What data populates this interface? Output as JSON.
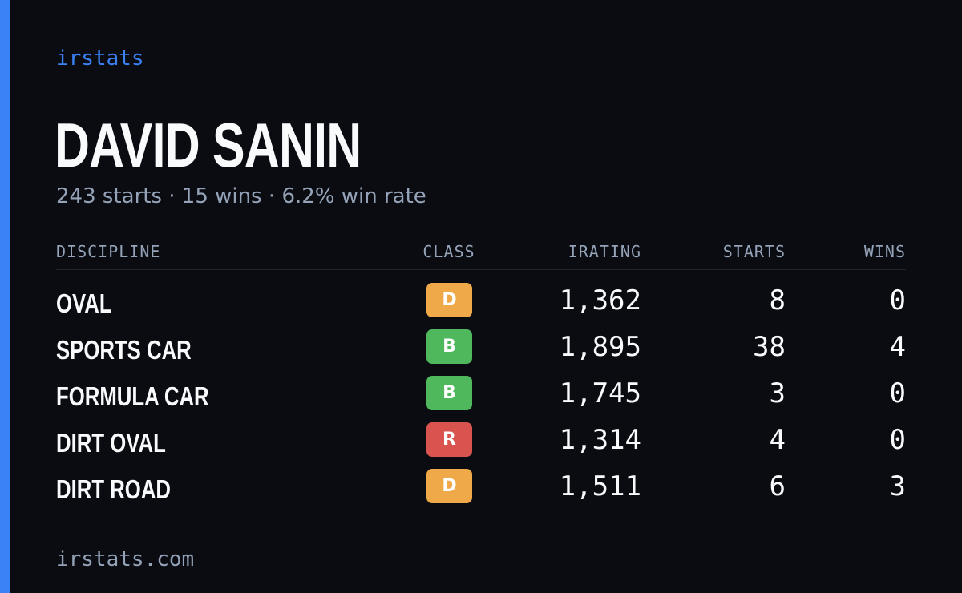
{
  "brand": "irstats",
  "driver": {
    "name": "DAVID SANIN",
    "summary": "243 starts · 15 wins · 6.2% win rate"
  },
  "table": {
    "headers": {
      "discipline": "DISCIPLINE",
      "class": "CLASS",
      "irating": "IRATING",
      "starts": "STARTS",
      "wins": "WINS"
    },
    "rows": [
      {
        "discipline": "OVAL",
        "class": "D",
        "class_color": "#efa948",
        "irating": "1,362",
        "starts": "8",
        "wins": "0"
      },
      {
        "discipline": "SPORTS CAR",
        "class": "B",
        "class_color": "#4fb85c",
        "irating": "1,895",
        "starts": "38",
        "wins": "4"
      },
      {
        "discipline": "FORMULA CAR",
        "class": "B",
        "class_color": "#4fb85c",
        "irating": "1,745",
        "starts": "3",
        "wins": "0"
      },
      {
        "discipline": "DIRT OVAL",
        "class": "R",
        "class_color": "#d9534f",
        "irating": "1,314",
        "starts": "4",
        "wins": "0"
      },
      {
        "discipline": "DIRT ROAD",
        "class": "D",
        "class_color": "#efa948",
        "irating": "1,511",
        "starts": "6",
        "wins": "3"
      }
    ]
  },
  "footer": "irstats.com",
  "colors": {
    "accent": "#3b82f6",
    "background": "#0a0c12",
    "muted": "#94a3b8"
  }
}
